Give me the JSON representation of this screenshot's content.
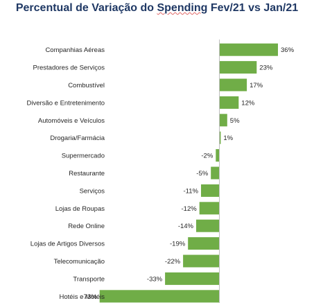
{
  "chart_data": {
    "type": "bar",
    "orientation": "horizontal",
    "title_parts": [
      "Percentual de Variação do ",
      "Spending",
      "  Fev/21 vs Jan/21"
    ],
    "categories": [
      "Companhias Aéreas",
      "Prestadores de Serviços",
      "Combustível",
      "Diversão e Entretenimento",
      "Automóveis e Veículos",
      "Drogaria/Farmácia",
      "Supermercado",
      "Restaurante",
      "Serviços",
      "Lojas de Roupas",
      "Rede Online",
      "Lojas de Artigos Diversos",
      "Telecomunicação",
      "Transporte",
      "Hotéis e Motéis"
    ],
    "values": [
      36,
      23,
      17,
      12,
      5,
      1,
      -2,
      -5,
      -11,
      -12,
      -14,
      -19,
      -22,
      -33,
      -73
    ],
    "value_labels": [
      "36%",
      "23%",
      "17%",
      "12%",
      "5%",
      "1%",
      "-2%",
      "-5%",
      "-11%",
      "-12%",
      "-14%",
      "-19%",
      "-22%",
      "-33%",
      "-73%"
    ],
    "bar_color": "#70ad47",
    "xlim": [
      -73,
      36
    ],
    "grid": false,
    "legend": "none"
  }
}
